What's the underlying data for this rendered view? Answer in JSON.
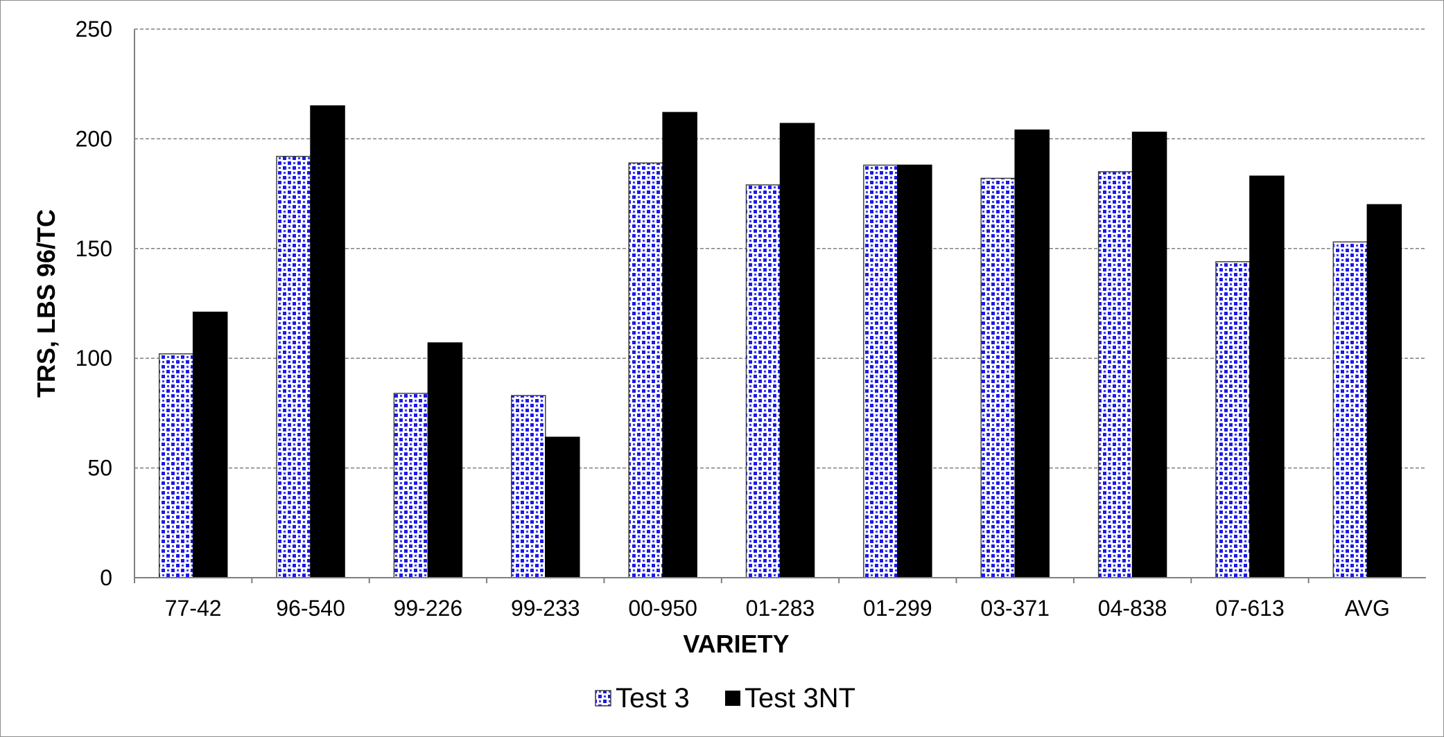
{
  "chart_data": {
    "type": "bar",
    "title": "",
    "xlabel": "VARIETY",
    "ylabel": "TRS, LBS 96/TC",
    "categories": [
      "77-42",
      "96-540",
      "99-226",
      "99-233",
      "00-950",
      "01-283",
      "01-299",
      "03-371",
      "04-838",
      "07-613",
      "AVG"
    ],
    "series": [
      {
        "name": "Test 3",
        "values": [
          102,
          192,
          84,
          83,
          189,
          179,
          188,
          182,
          185,
          144,
          153
        ],
        "color": "#1a1ae6",
        "pattern": "blue-dot-pattern"
      },
      {
        "name": "Test 3NT",
        "values": [
          121,
          215,
          107,
          64,
          212,
          207,
          188,
          204,
          203,
          183,
          170
        ],
        "color": "#000000",
        "pattern": "solid"
      }
    ],
    "ylim": [
      0,
      250
    ],
    "yticks": [
      0,
      50,
      100,
      150,
      200,
      250
    ],
    "grid": "horizontal-dashed",
    "legend_position": "bottom-center"
  }
}
